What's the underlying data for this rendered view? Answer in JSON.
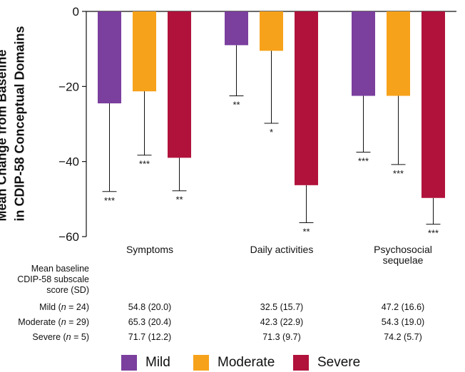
{
  "chart_data": {
    "type": "bar",
    "ylabel_lines": [
      "Mean Change from Baseline",
      "in CDIP-58 Conceptual Domains"
    ],
    "ylim": [
      -60,
      0
    ],
    "yticks": [
      0,
      -20,
      -40,
      -60
    ],
    "ytick_labels": [
      "0",
      "−20",
      "−40",
      "−60"
    ],
    "categories": [
      "Symptoms",
      "Daily activities",
      "Psychosocial sequelae"
    ],
    "series": [
      {
        "name": "Mild",
        "color": "#7b3f9e",
        "values": [
          -24.5,
          -9.0,
          -22.5
        ],
        "error_low": [
          -48.0,
          -22.5,
          -37.5
        ],
        "significance": [
          "***",
          "**",
          "***"
        ]
      },
      {
        "name": "Moderate",
        "color": "#f7a21b",
        "values": [
          -21.3,
          -10.5,
          -22.5
        ],
        "error_low": [
          -38.3,
          -29.8,
          -40.8
        ],
        "significance": [
          "***",
          "*",
          "***"
        ]
      },
      {
        "name": "Severe",
        "color": "#b0123b",
        "values": [
          -39.0,
          -46.3,
          -49.7
        ],
        "error_low": [
          -47.8,
          -56.3,
          -56.7
        ],
        "significance": [
          "**",
          "**",
          "***"
        ]
      }
    ]
  },
  "table": {
    "header_lines": [
      "Mean baseline",
      "CDIP-58 subscale",
      "score (SD)"
    ],
    "rows": [
      {
        "label_prefix": "Mild (",
        "label_n": "n",
        "label_suffix": " = 24)",
        "values": [
          "54.8 (20.0)",
          "32.5 (15.7)",
          "47.2 (16.6)"
        ]
      },
      {
        "label_prefix": "Moderate (",
        "label_n": "n",
        "label_suffix": " = 29)",
        "values": [
          "65.3 (20.4)",
          "42.3 (22.9)",
          "54.3 (19.0)"
        ]
      },
      {
        "label_prefix": "Severe (",
        "label_n": "n",
        "label_suffix": " = 5)",
        "values": [
          "71.7 (12.2)",
          "71.3 (9.7)",
          "74.2 (5.7)"
        ]
      }
    ]
  },
  "category_lines": [
    [
      "Symptoms"
    ],
    [
      "Daily activities"
    ],
    [
      "Psychosocial",
      "sequelae"
    ]
  ],
  "legend": [
    {
      "label": "Mild",
      "color": "#7b3f9e"
    },
    {
      "label": "Moderate",
      "color": "#f7a21b"
    },
    {
      "label": "Severe",
      "color": "#b0123b"
    }
  ]
}
